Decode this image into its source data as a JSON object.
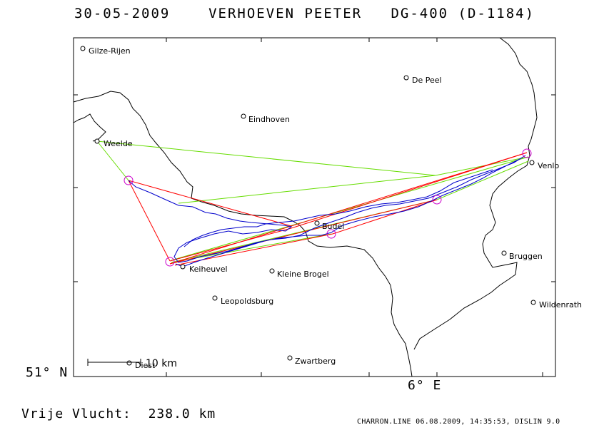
{
  "header": {
    "date": "30-05-2009",
    "pilot": "VERHOEVEN PEETER",
    "glider": "DG-400 (D-1184)"
  },
  "map": {
    "latitude_label": "51° N",
    "longitude_label": "6° E",
    "scale_label": "10 km",
    "places": [
      {
        "name": "Gilze-Rijen"
      },
      {
        "name": "De Peel"
      },
      {
        "name": "Eindhoven"
      },
      {
        "name": "Weelde"
      },
      {
        "name": "Venlo"
      },
      {
        "name": "Budel"
      },
      {
        "name": "Bruggen"
      },
      {
        "name": "Keiheuvel"
      },
      {
        "name": "Kleine Brogel"
      },
      {
        "name": "Leopoldsburg"
      },
      {
        "name": "Wildenrath"
      },
      {
        "name": "Zwartberg"
      },
      {
        "name": "Diest"
      }
    ],
    "colors": {
      "track": "#0000cc",
      "task_leg": "#ff0000",
      "declared_leg": "#66dd00",
      "turnpoint": "#cc00cc",
      "border": "#000000"
    }
  },
  "footer": {
    "distance_label": "Vrije Vlucht:",
    "distance_value": "238.0 km",
    "credits": "CHARRON.LINE 06.08.2009, 14:35:53, DISLIN 9.0"
  }
}
